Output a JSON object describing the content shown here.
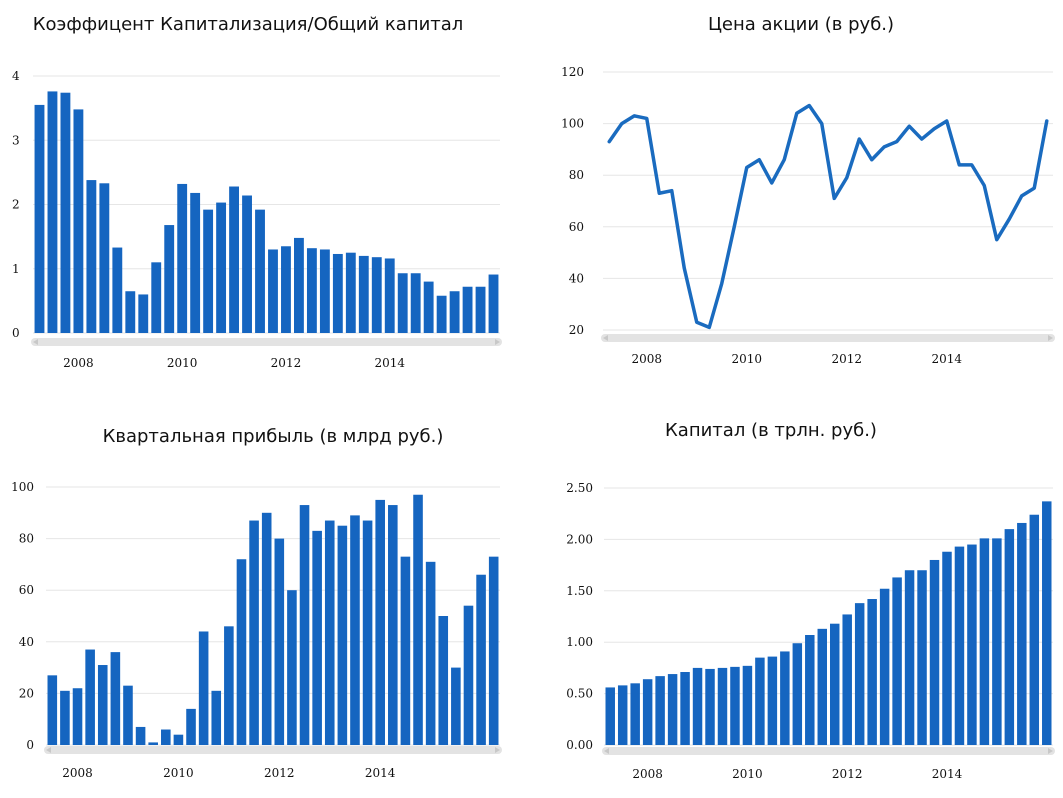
{
  "chart_data": [
    {
      "id": "cap",
      "type": "bar",
      "title": "Коэффицент Капитализация/Общий капитал",
      "x_start": 2007.25,
      "x_step": 0.25,
      "ylim": [
        0,
        4
      ],
      "yticks": [
        0,
        1,
        2,
        3,
        4
      ],
      "ytick_labels": [
        "0",
        "1",
        "2",
        "3",
        "4"
      ],
      "xticks": [
        "2008",
        "2010",
        "2012",
        "2014"
      ],
      "values": [
        3.55,
        3.76,
        3.74,
        3.48,
        2.38,
        2.33,
        1.33,
        0.65,
        0.6,
        1.1,
        1.68,
        2.32,
        2.18,
        1.92,
        2.03,
        2.28,
        2.14,
        1.92,
        1.3,
        1.35,
        1.48,
        1.32,
        1.3,
        1.23,
        1.25,
        1.2,
        1.18,
        1.16,
        0.93,
        0.93,
        0.8,
        0.58,
        0.65,
        0.72,
        0.72,
        0.91
      ],
      "grid": true
    },
    {
      "id": "price",
      "type": "line",
      "title": "Цена акции (в руб.)",
      "x_start": 2007.25,
      "x_step": 0.25,
      "ylim": [
        20,
        120
      ],
      "yticks": [
        20,
        40,
        60,
        80,
        100,
        120
      ],
      "ytick_labels": [
        "20",
        "40",
        "60",
        "80",
        "100",
        "120"
      ],
      "xticks": [
        "2008",
        "2010",
        "2012",
        "2014"
      ],
      "values": [
        93,
        100,
        103,
        102,
        73,
        74,
        44,
        23,
        21,
        38,
        60,
        83,
        86,
        77,
        86,
        104,
        107,
        100,
        71,
        79,
        94,
        86,
        91,
        93,
        99,
        94,
        98,
        101,
        84,
        84,
        76,
        55,
        63,
        72,
        75,
        101
      ],
      "grid": true
    },
    {
      "id": "profit",
      "type": "bar",
      "title": "Квартальная прибыль (в млрд руб.)",
      "x_start": 2007.5,
      "x_step": 0.25,
      "ylim": [
        0,
        100
      ],
      "yticks": [
        0,
        20,
        40,
        60,
        80,
        100
      ],
      "ytick_labels": [
        "0",
        "20",
        "40",
        "60",
        "80",
        "100"
      ],
      "xticks": [
        "2008",
        "2010",
        "2012",
        "2014"
      ],
      "values": [
        27,
        21,
        22,
        37,
        31,
        36,
        23,
        7,
        1,
        6,
        4,
        14,
        44,
        21,
        46,
        72,
        87,
        90,
        80,
        60,
        93,
        83,
        87,
        85,
        89,
        87,
        95,
        93,
        73,
        97,
        71,
        50,
        30,
        54,
        66,
        73
      ],
      "grid": true
    },
    {
      "id": "equity",
      "type": "bar",
      "title": "Капитал (в трлн. руб.)",
      "x_start": 2007.25,
      "x_step": 0.25,
      "ylim": [
        0,
        2.5
      ],
      "yticks": [
        0,
        0.5,
        1,
        1.5,
        2,
        2.5
      ],
      "ytick_labels": [
        "0.00",
        "0.50",
        "1.00",
        "1.50",
        "2.00",
        "2.50"
      ],
      "xticks": [
        "2008",
        "2010",
        "2012",
        "2014"
      ],
      "values": [
        0.56,
        0.58,
        0.6,
        0.64,
        0.67,
        0.69,
        0.71,
        0.75,
        0.74,
        0.75,
        0.76,
        0.77,
        0.85,
        0.86,
        0.91,
        0.99,
        1.07,
        1.13,
        1.18,
        1.27,
        1.38,
        1.42,
        1.52,
        1.63,
        1.7,
        1.7,
        1.8,
        1.88,
        1.93,
        1.95,
        2.01,
        2.01,
        2.1,
        2.16,
        2.24,
        2.37
      ],
      "grid": true
    }
  ]
}
